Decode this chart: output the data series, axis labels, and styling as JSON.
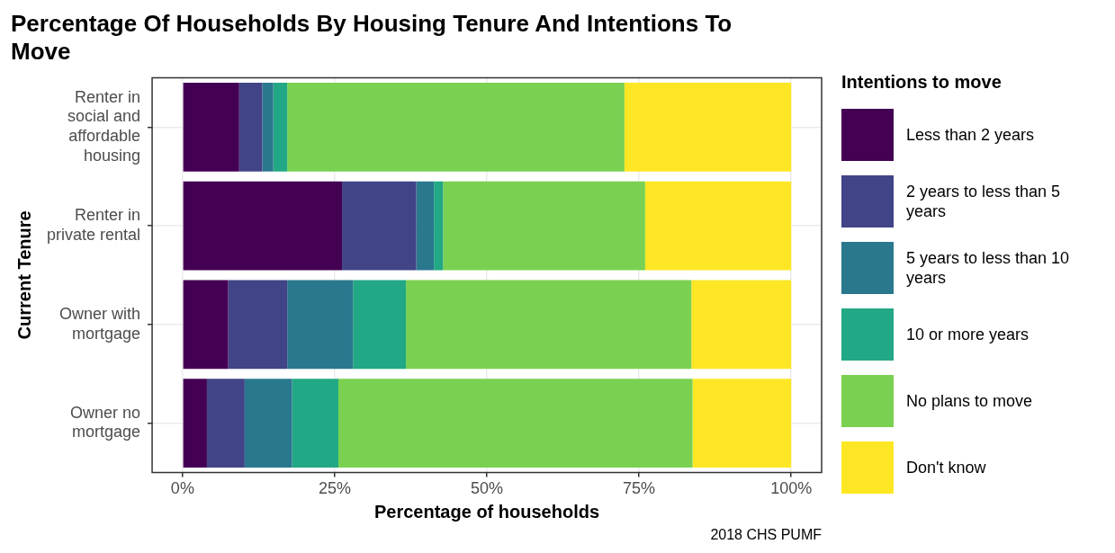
{
  "chart_data": {
    "type": "bar",
    "orientation": "horizontal",
    "stacked": true,
    "title": "Percentage Of Households By Housing Tenure And Intentions To Move",
    "xlabel": "Percentage of households",
    "ylabel": "Current Tenure",
    "legend_title": "Intentions to move",
    "categories": [
      "Renter in social and affordable housing",
      "Renter in private rental",
      "Owner with mortgage",
      "Owner no mortgage"
    ],
    "series": [
      {
        "name": "Less than 2 years",
        "color": "#440154",
        "values": [
          9.3,
          26.2,
          7.5,
          4.0
        ]
      },
      {
        "name": "2 years to less than 5 years",
        "color": "#414487",
        "values": [
          3.8,
          12.2,
          9.7,
          6.2
        ]
      },
      {
        "name": "5 years to less than 10 years",
        "color": "#2a788e",
        "values": [
          1.8,
          2.9,
          10.8,
          7.8
        ]
      },
      {
        "name": "10 or more years",
        "color": "#22a884",
        "values": [
          2.3,
          1.5,
          8.7,
          7.6
        ]
      },
      {
        "name": "No plans to move",
        "color": "#7ad151",
        "values": [
          55.4,
          33.2,
          46.9,
          58.2
        ]
      },
      {
        "name": "Don't know",
        "color": "#fde725",
        "values": [
          27.4,
          24.0,
          16.4,
          16.2
        ]
      }
    ],
    "xlim": [
      -5,
      105
    ],
    "xticks": [
      {
        "value": 0,
        "label": "0%"
      },
      {
        "value": 25,
        "label": "25%"
      },
      {
        "value": 50,
        "label": "50%"
      },
      {
        "value": 75,
        "label": "75%"
      },
      {
        "value": 100,
        "label": "100%"
      }
    ],
    "grid": true,
    "legend": "right",
    "annotations": [
      "2018 CHS PUMF"
    ]
  }
}
